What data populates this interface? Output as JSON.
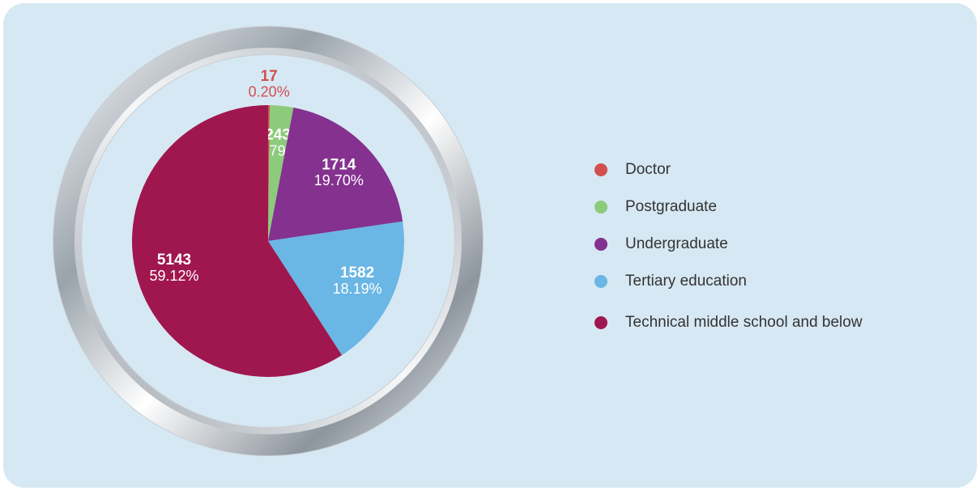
{
  "chart_data": {
    "type": "pie",
    "categories": [
      "Doctor",
      "Postgraduate",
      "Undergraduate",
      "Tertiary education",
      "Technical middle school and below"
    ],
    "values": [
      17,
      243,
      1714,
      1582,
      5143
    ],
    "percent_labels": [
      "0.20%",
      "2.79%",
      "19.70%",
      "18.19%",
      "59.12%"
    ],
    "colors": [
      "#d24f4f",
      "#8ccb7c",
      "#84318f",
      "#6ab6e4",
      "#a0174f"
    ],
    "legend": "right"
  }
}
